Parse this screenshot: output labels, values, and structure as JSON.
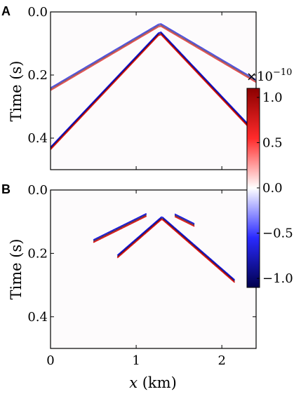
{
  "chart_data": [
    {
      "panel": "A",
      "type": "heatmap",
      "title": "",
      "xlabel": "",
      "ylabel": "Time (s)",
      "xlim": [
        0,
        2.4
      ],
      "ylim": [
        0.5,
        0.0
      ],
      "yticks": [
        0.0,
        0.2,
        0.4
      ],
      "yticklabels": [
        "0.0",
        "0.2",
        "0.4"
      ],
      "x_tick_labels_shown": false,
      "wavefronts": [
        {
          "name": "",
          "apex_x_km": 1.28,
          "apex_t_s": 0.04,
          "slope_s_per_km": 0.16,
          "left_start_km": 0.0,
          "right_end_km": 2.4,
          "fade_start_km": 1.45
        },
        {
          "name": "",
          "apex_x_km": 1.28,
          "apex_t_s": 0.065,
          "slope_s_per_km": 0.287,
          "left_start_km": 0.0,
          "right_end_km": 2.4,
          "fade_start_km": 2.4
        }
      ],
      "grid": false
    },
    {
      "panel": "B",
      "type": "heatmap",
      "title": "",
      "xlabel": "x (km)",
      "ylabel": "Time (s)",
      "xlim": [
        0,
        2.4
      ],
      "ylim": [
        0.5,
        0.0
      ],
      "xticks": [
        0,
        1,
        2
      ],
      "xticklabels": [
        "0",
        "1",
        "2"
      ],
      "yticks": [
        0.0,
        0.2,
        0.4
      ],
      "yticklabels": [
        "0.0",
        "0.2",
        "0.4"
      ],
      "wavefronts": [
        {
          "name": "",
          "apex_x_km": 1.28,
          "apex_t_s": 0.057,
          "slope_s_per_km": 0.134,
          "left_start_km": 0.5,
          "right_end_km": 1.68,
          "gap": [
            1.12,
            1.45
          ]
        },
        {
          "name": "",
          "apex_x_km": 1.3,
          "apex_t_s": 0.088,
          "slope_s_per_km": 0.235,
          "left_start_km": 0.78,
          "right_end_km": 2.15
        }
      ],
      "grid": false
    }
  ],
  "colorbar": {
    "exponent_label": "×10",
    "exponent_power": "−10",
    "range": [
      -1.1,
      1.1
    ],
    "ticks": [
      1.0,
      0.5,
      0.0,
      -0.5,
      -1.0
    ],
    "tick_labels": [
      "1.0",
      "0.5",
      "0.0",
      "−0.5",
      "−1.0"
    ],
    "colormap": "seismic",
    "colors": {
      "positive": "#8b0000",
      "mid_pos": "#ff0000",
      "zero": "#ffffff",
      "mid_neg": "#0000ff",
      "negative": "#00004d"
    }
  },
  "labels": {
    "panel_a": "A",
    "panel_b": "B",
    "ylabel_a": "Time (s)",
    "ylabel_b": "Time (s)",
    "xlabel_var": "x",
    "xlabel_unit": " (km)"
  }
}
